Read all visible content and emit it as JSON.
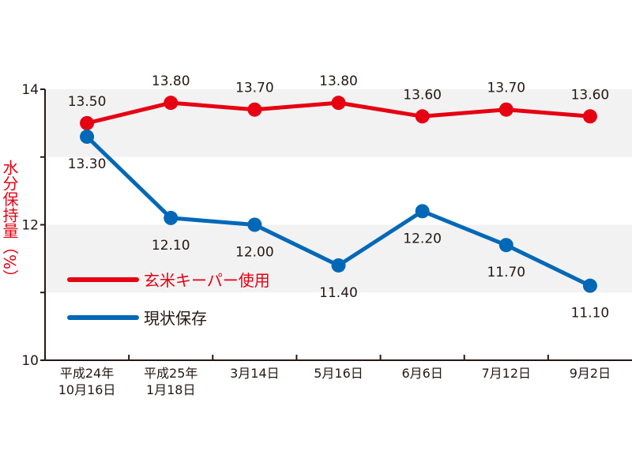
{
  "chart_data": {
    "type": "line",
    "title": "",
    "xlabel": "",
    "ylabel": "水分保持量（%）",
    "ylim": [
      10,
      14
    ],
    "yticks": [
      10,
      12,
      14
    ],
    "y_minor_ticks": [
      11,
      13
    ],
    "categories": [
      [
        "平成24年",
        "10月16日"
      ],
      [
        "平成25年",
        "1月18日"
      ],
      [
        "3月14日"
      ],
      [
        "5月16日"
      ],
      [
        "6月6日"
      ],
      [
        "7月12日"
      ],
      [
        "9月2日"
      ]
    ],
    "series": [
      {
        "name": "玄米キーパー使用",
        "color": "#e60012",
        "values": [
          13.5,
          13.8,
          13.7,
          13.8,
          13.6,
          13.7,
          13.6
        ],
        "labels": [
          "13.50",
          "13.80",
          "13.70",
          "13.80",
          "13.60",
          "13.70",
          "13.60"
        ],
        "label_position": "above"
      },
      {
        "name": "現状保存",
        "color": "#0068b7",
        "values": [
          13.3,
          12.1,
          12.0,
          11.4,
          12.2,
          11.7,
          11.1
        ],
        "labels": [
          "13.30",
          "12.10",
          "12.00",
          "11.40",
          "12.20",
          "11.70",
          "11.10"
        ],
        "label_position": "below"
      }
    ],
    "legend_placement": "left-middle",
    "background_bands": [
      [
        11,
        12
      ],
      [
        13,
        14
      ]
    ],
    "band_color": "#f2f2f2",
    "ylabel_color": "#e60012",
    "grid": false
  }
}
